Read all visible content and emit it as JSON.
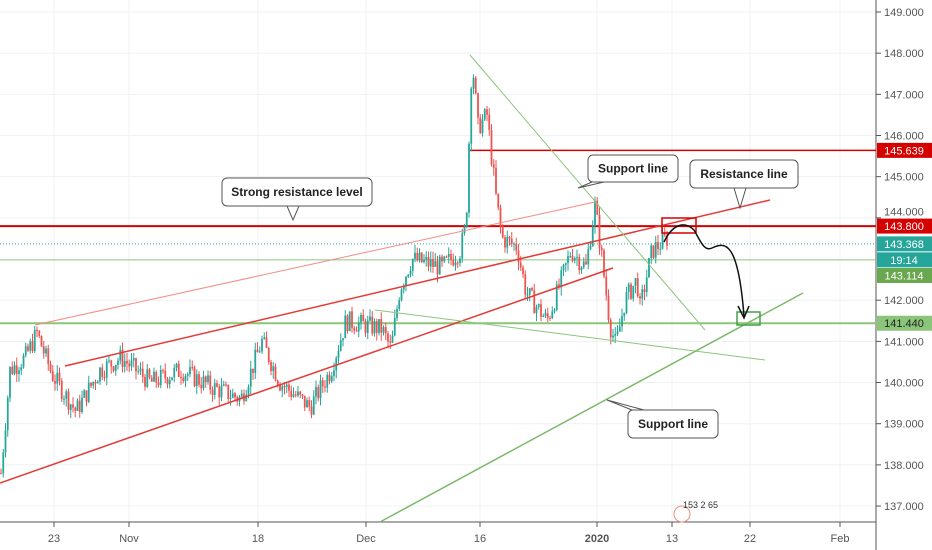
{
  "chart_data": {
    "type": "candlestick",
    "title": "",
    "y_axis": {
      "ticks": [
        "149.000",
        "148.000",
        "147.000",
        "146.000",
        "145.000",
        "144.000",
        "142.000",
        "141.000",
        "140.000",
        "139.000",
        "138.000",
        "137.000"
      ],
      "ylim": [
        136.6,
        149.3
      ]
    },
    "x_axis": {
      "ticks": [
        {
          "label": "23",
          "bar": 18
        },
        {
          "label": "Nov",
          "bar": 43
        },
        {
          "label": "18",
          "bar": 86
        },
        {
          "label": "Dec",
          "bar": 122
        },
        {
          "label": "16",
          "bar": 160
        },
        {
          "label": "2020",
          "bar": 199,
          "bold": true
        },
        {
          "label": "13",
          "bar": 224
        },
        {
          "label": "22",
          "bar": 250
        },
        {
          "label": "Feb",
          "bar": 280
        }
      ]
    },
    "price_path": [
      [
        0,
        137.8
      ],
      [
        3,
        140.3
      ],
      [
        8,
        140.6
      ],
      [
        12,
        141.2
      ],
      [
        17,
        140.2
      ],
      [
        25,
        139.3
      ],
      [
        33,
        140.3
      ],
      [
        40,
        140.6
      ],
      [
        50,
        140.0
      ],
      [
        60,
        140.3
      ],
      [
        70,
        139.9
      ],
      [
        80,
        139.6
      ],
      [
        87,
        141.0
      ],
      [
        93,
        140.0
      ],
      [
        103,
        139.4
      ],
      [
        110,
        140.3
      ],
      [
        115,
        141.5
      ],
      [
        127,
        141.3
      ],
      [
        130,
        140.8
      ],
      [
        133,
        142.3
      ],
      [
        137,
        143.0
      ],
      [
        147,
        142.8
      ],
      [
        153,
        143.2
      ],
      [
        155,
        143.8
      ],
      [
        157,
        147.9
      ],
      [
        159,
        146.2
      ],
      [
        162,
        146.5
      ],
      [
        165,
        144.5
      ],
      [
        167,
        143.5
      ],
      [
        172,
        143.3
      ],
      [
        175,
        142.2
      ],
      [
        182,
        141.5
      ],
      [
        185,
        142.1
      ],
      [
        190,
        143.2
      ],
      [
        195,
        142.8
      ],
      [
        198,
        144.3
      ],
      [
        200,
        143.2
      ],
      [
        203,
        141.4
      ],
      [
        205,
        140.9
      ],
      [
        208,
        142.0
      ],
      [
        212,
        142.5
      ],
      [
        213,
        141.8
      ],
      [
        217,
        143.2
      ],
      [
        222,
        143.5
      ]
    ],
    "price_labels": [
      {
        "value": "145.639",
        "price": 145.639,
        "color": "#d50000"
      },
      {
        "value": "143.800",
        "price": 143.8,
        "color": "#d50000"
      },
      {
        "value": "143.368",
        "price": 143.368,
        "color": "#26a69a"
      },
      {
        "value": "19:14",
        "price": 142.98,
        "color": "#26a69a"
      },
      {
        "value": "143.114",
        "price": 142.6,
        "color": "#6aa84f"
      },
      {
        "value": "141.440",
        "price": 141.44,
        "color": "#8bc57a",
        "text_color": "#222"
      }
    ],
    "annotations": [
      {
        "text": "Strong resistance level"
      },
      {
        "text": "Support line"
      },
      {
        "text": "Resistance line"
      },
      {
        "text": "Support line"
      }
    ],
    "indicator_text": "153 2 65",
    "colors": {
      "up": "#26a69a",
      "down": "#ef5350",
      "resistance": "#e53935",
      "support": "#7cb96a"
    }
  }
}
